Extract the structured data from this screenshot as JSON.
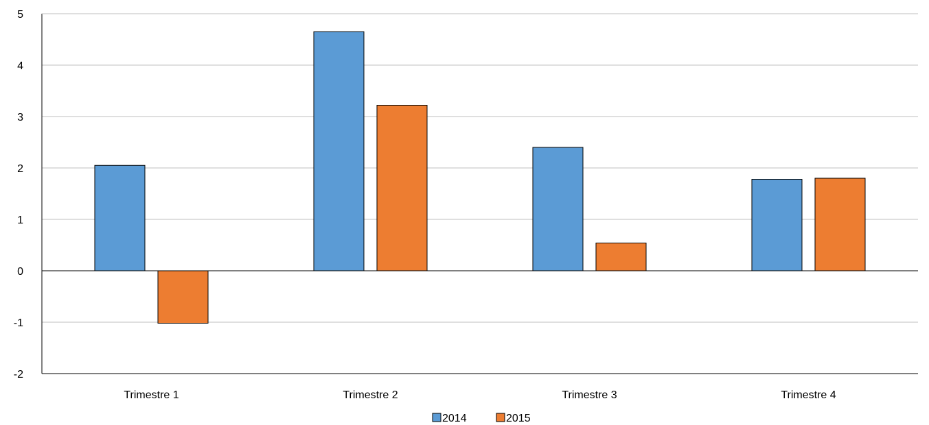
{
  "chart_data": {
    "type": "bar",
    "categories": [
      "Trimestre 1",
      "Trimestre 2",
      "Trimestre 3",
      "Trimestre 4"
    ],
    "series": [
      {
        "name": "2014",
        "values": [
          2.05,
          4.65,
          2.4,
          1.78
        ],
        "color": "#5B9BD5"
      },
      {
        "name": "2015",
        "values": [
          -1.02,
          3.22,
          0.54,
          1.8
        ],
        "color": "#ED7D31"
      }
    ],
    "ylim": [
      -2,
      5
    ],
    "yticks": [
      "5",
      "4",
      "3",
      "2",
      "1",
      "0",
      "-1",
      "-2"
    ],
    "ytick_values": [
      5,
      4,
      3,
      2,
      1,
      0,
      -1,
      -2
    ],
    "grid": true,
    "legend_position": "bottom"
  }
}
